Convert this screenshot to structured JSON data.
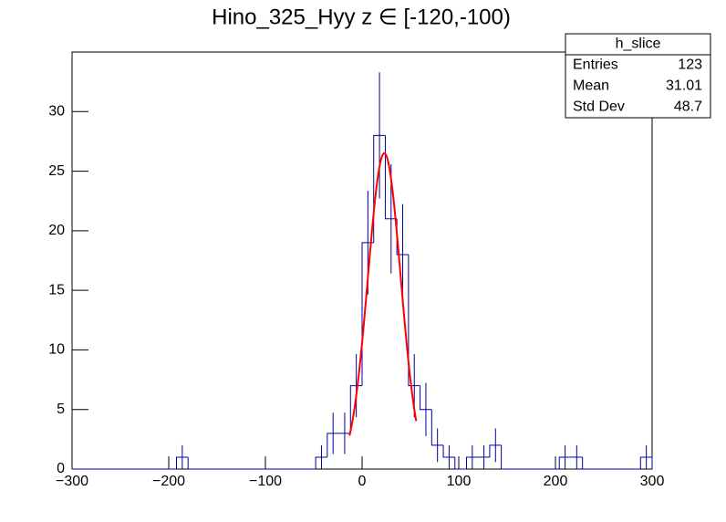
{
  "chart_data": {
    "type": "histogram",
    "title": "Hino_325_Hyy z  ∈ [-120,-100)",
    "bins": [
      -300,
      -288,
      -276,
      -264,
      -252,
      -240,
      -228,
      -216,
      -204,
      -192,
      -180,
      -168,
      -156,
      -144,
      -132,
      -120,
      -108,
      -96,
      -84,
      -72,
      -60,
      -48,
      -36,
      -24,
      -12,
      0,
      12,
      24,
      36,
      48,
      60,
      72,
      84,
      96,
      108,
      120,
      132,
      144,
      156,
      168,
      180,
      192,
      204,
      216,
      228,
      240,
      252,
      264,
      276,
      288,
      300
    ],
    "values": [
      0,
      0,
      0,
      0,
      0,
      0,
      0,
      0,
      0,
      1,
      0,
      0,
      0,
      0,
      0,
      0,
      0,
      0,
      0,
      0,
      0,
      1,
      3,
      3,
      7,
      19,
      28,
      21,
      18,
      7,
      5,
      2,
      1,
      0,
      1,
      1,
      2,
      0,
      0,
      0,
      0,
      0,
      1,
      1,
      0,
      0,
      0,
      0,
      0,
      1
    ],
    "color": "#000099",
    "error_bars": "poisson",
    "fit": {
      "amplitude": 26.5,
      "mean": 23,
      "sigma": 17,
      "range": [
        -13,
        56
      ],
      "color": "#ff0000"
    },
    "xlim": [
      -300,
      300
    ],
    "xticks": [
      {
        "value": -300,
        "label": "−300"
      },
      {
        "value": -200,
        "label": "−200"
      },
      {
        "value": -100,
        "label": "−100"
      },
      0,
      100,
      200,
      300
    ],
    "ylim": [
      0,
      35
    ],
    "yticks": [
      0,
      5,
      10,
      15,
      20,
      25,
      30
    ],
    "stats": {
      "title": "h_slice",
      "rows": [
        [
          "Entries",
          "123"
        ],
        [
          "Mean",
          "31.01"
        ],
        [
          "Std Dev",
          "48.7"
        ]
      ]
    }
  }
}
